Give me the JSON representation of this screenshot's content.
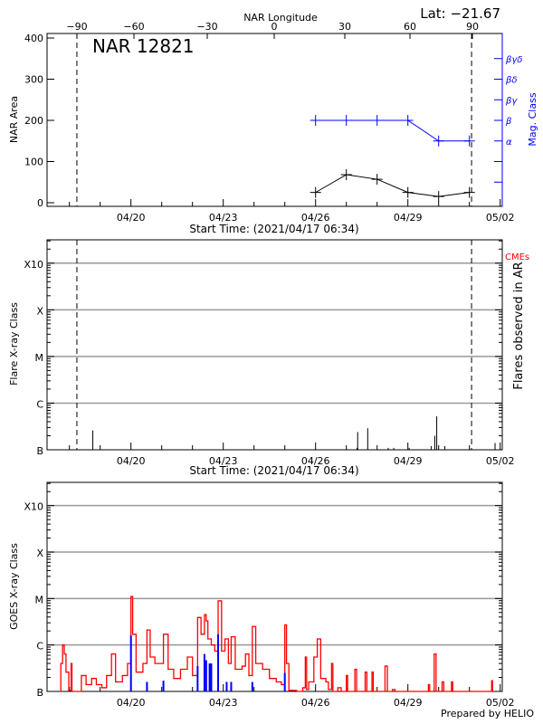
{
  "header": {
    "lat_label": "Lat: −21.67",
    "region_title": "NAR 12821",
    "top_axis_title": "NAR Longitude",
    "footer": "Prepared by HELIO"
  },
  "colors": {
    "area": "#000000",
    "mag_class": "#0000ff",
    "goes": "#ff0000",
    "goes_events": "#0000ff",
    "cmes": "#ff0000",
    "grid": "#999999"
  },
  "chart_data": [
    {
      "type": "line",
      "panel": "nar",
      "xlabel": "Start Time: (2021/04/17 06:34)",
      "ylabel": "NAR Area",
      "y2label": "Mag. Class",
      "x_range": [
        "2021-04-17T06:34",
        "2021-05-02T01:50"
      ],
      "x_tick_labels": [
        "04/20",
        "04/23",
        "04/26",
        "04/29",
        "05/02"
      ],
      "x_ticks": [
        "2021-04-20T00:00",
        "2021-04-23T00:00",
        "2021-04-26T00:00",
        "2021-04-29T00:00",
        "2021-05-02T00:00"
      ],
      "ylim": [
        0,
        400
      ],
      "y_ticks": [
        0,
        100,
        200,
        300,
        400
      ],
      "top_axis_tick_labels": [
        "−90",
        "−60",
        "−30",
        "0",
        "30",
        "60",
        "90"
      ],
      "y2_tick_labels": [
        "",
        "",
        "α",
        "β",
        "βγ",
        "βδ",
        "βγδ"
      ],
      "limb_crossings": [
        "2021-04-18T05:50",
        "2021-05-01T01:40"
      ],
      "series": [
        {
          "key": "area",
          "x": [
            "2021-04-26T00:00",
            "2021-04-27T00:00",
            "2021-04-28T00:00",
            "2021-04-29T00:00",
            "2021-04-30T00:00",
            "2021-05-01T00:00"
          ],
          "values": [
            25,
            68,
            57,
            25,
            15,
            25
          ]
        },
        {
          "key": "mag_class",
          "x": [
            "2021-04-26T00:00",
            "2021-04-27T00:00",
            "2021-04-28T00:00",
            "2021-04-29T00:00",
            "2021-04-30T00:00",
            "2021-05-01T00:00"
          ],
          "values": [
            "β",
            "β",
            "β",
            "β",
            "α",
            "α"
          ]
        }
      ]
    },
    {
      "type": "bar",
      "panel": "flares",
      "xlabel": "Start Time: (2021/04/17 06:34)",
      "ylabel": "Flare X-ray Class",
      "y2label": "Flares observed in AR",
      "legend": "CMEs",
      "y_scale": "log",
      "ylim_flux": [
        1e-07,
        0.00316
      ],
      "y_tick_labels": [
        "B",
        "C",
        "M",
        "X",
        "X10"
      ],
      "x_tick_labels": [
        "04/20",
        "04/23",
        "04/26",
        "04/29",
        "05/02"
      ],
      "limb_crossings": [
        "2021-04-18T05:50",
        "2021-05-01T01:40"
      ],
      "flares": [
        [
          "2021-04-18T18:15",
          2.6e-07
        ],
        [
          "2021-04-27T01:10",
          1e-07
        ],
        [
          "2021-04-27T08:20",
          1.1e-07
        ],
        [
          "2021-04-27T08:50",
          2.4e-07
        ],
        [
          "2021-04-27T16:40",
          2.9e-07
        ],
        [
          "2021-04-28T08:40",
          1.1e-07
        ],
        [
          "2021-04-28T13:00",
          1.1e-07
        ],
        [
          "2021-04-29T01:00",
          1.1e-07
        ],
        [
          "2021-04-29T18:10",
          1.2e-07
        ],
        [
          "2021-04-29T21:00",
          2e-07
        ],
        [
          "2021-04-29T22:30",
          5.2e-07
        ],
        [
          "2021-04-30T04:50",
          1.2e-07
        ],
        [
          "2021-05-01T20:00",
          1.4e-07
        ],
        [
          "2021-05-02T00:00",
          1.05e-07
        ]
      ]
    },
    {
      "type": "line",
      "panel": "goes",
      "ylabel": "GOES X-ray Class",
      "y_scale": "log",
      "ylim_flux": [
        1e-07,
        0.00316
      ],
      "y_tick_labels": [
        "B",
        "C",
        "M",
        "X",
        "X10"
      ],
      "x_tick_labels": [
        "04/20",
        "04/23",
        "04/26",
        "04/29",
        "05/02"
      ],
      "goes_flux": [
        [
          "2021-04-17T16:30",
          1e-07
        ],
        [
          "2021-04-17T17:18",
          4e-07
        ],
        [
          "2021-04-17T18:40",
          1e-06
        ],
        [
          "2021-04-17T20:00",
          6.4e-07
        ],
        [
          "2021-04-17T21:20",
          2.6e-07
        ],
        [
          "2021-04-17T23:30",
          1.05e-07
        ],
        [
          "2021-04-18T01:20",
          4e-07
        ],
        [
          "2021-04-18T02:00",
          1e-07
        ],
        [
          "2021-04-18T08:00",
          1e-07
        ],
        [
          "2021-04-18T09:20",
          2.2e-07
        ],
        [
          "2021-04-18T13:00",
          1.4e-07
        ],
        [
          "2021-04-18T17:20",
          1.9e-07
        ],
        [
          "2021-04-18T21:00",
          1.4e-07
        ],
        [
          "2021-04-19T01:20",
          1.2e-07
        ],
        [
          "2021-04-19T05:00",
          2.2e-07
        ],
        [
          "2021-04-19T08:50",
          6.4e-07
        ],
        [
          "2021-04-19T12:00",
          1.6e-07
        ],
        [
          "2021-04-19T17:20",
          2.2e-07
        ],
        [
          "2021-04-19T21:20",
          4e-07
        ],
        [
          "2021-04-20T00:00",
          1.1e-05
        ],
        [
          "2021-04-20T01:20",
          1.7e-06
        ],
        [
          "2021-04-20T04:00",
          2.6e-07
        ],
        [
          "2021-04-20T09:20",
          4e-07
        ],
        [
          "2021-04-20T12:30",
          2.1e-06
        ],
        [
          "2021-04-20T15:00",
          5.5e-07
        ],
        [
          "2021-04-20T18:40",
          4e-07
        ],
        [
          "2021-04-21T01:20",
          1.7e-06
        ],
        [
          "2021-04-21T05:00",
          3e-07
        ],
        [
          "2021-04-21T09:20",
          1.9e-07
        ],
        [
          "2021-04-21T14:40",
          3e-07
        ],
        [
          "2021-04-21T20:00",
          5.5e-07
        ],
        [
          "2021-04-22T00:00",
          2.2e-07
        ],
        [
          "2021-04-22T04:00",
          3.9e-06
        ],
        [
          "2021-04-22T06:40",
          1.7e-06
        ],
        [
          "2021-04-22T09:20",
          4.5e-06
        ],
        [
          "2021-04-22T10:40",
          3.3e-06
        ],
        [
          "2021-04-22T12:00",
          1.35e-06
        ],
        [
          "2021-04-22T14:40",
          1e-06
        ],
        [
          "2021-04-22T17:20",
          7.4e-07
        ],
        [
          "2021-04-22T20:00",
          8.9e-06
        ],
        [
          "2021-04-22T22:40",
          7.4e-07
        ],
        [
          "2021-04-23T01:20",
          1.35e-06
        ],
        [
          "2021-04-23T04:00",
          4e-07
        ],
        [
          "2021-04-23T06:10",
          1.5e-06
        ],
        [
          "2021-04-23T09:20",
          3e-07
        ],
        [
          "2021-04-23T14:40",
          3.5e-07
        ],
        [
          "2021-04-23T17:20",
          6.4e-07
        ],
        [
          "2021-04-23T20:00",
          2.2e-07
        ],
        [
          "2021-04-23T22:40",
          2.5e-06
        ],
        [
          "2021-04-24T01:20",
          4e-07
        ],
        [
          "2021-04-24T06:40",
          3e-07
        ],
        [
          "2021-04-24T12:00",
          1.9e-07
        ],
        [
          "2021-04-24T17:20",
          1.6e-07
        ],
        [
          "2021-04-24T21:20",
          1.4e-07
        ],
        [
          "2021-04-25T00:00",
          2.7e-06
        ],
        [
          "2021-04-25T01:20",
          4e-07
        ],
        [
          "2021-04-25T03:10",
          1.05e-07
        ],
        [
          "2021-04-25T09:20",
          1e-07
        ],
        [
          "2021-04-25T14:00",
          1.2e-07
        ],
        [
          "2021-04-25T16:00",
          5.5e-07
        ],
        [
          "2021-04-25T17:00",
          1.1e-07
        ],
        [
          "2021-04-25T18:40",
          1.6e-07
        ],
        [
          "2021-04-25T22:40",
          5.5e-07
        ],
        [
          "2021-04-26T01:20",
          1.35e-06
        ],
        [
          "2021-04-26T04:00",
          1.9e-07
        ],
        [
          "2021-04-26T08:00",
          1.6e-07
        ],
        [
          "2021-04-26T10:00",
          1.1e-07
        ],
        [
          "2021-04-26T12:30",
          4e-07
        ],
        [
          "2021-04-26T13:30",
          1e-07
        ],
        [
          "2021-04-26T17:20",
          1.2e-07
        ],
        [
          "2021-04-26T20:00",
          1e-07
        ],
        [
          "2021-04-27T00:00",
          2.2e-07
        ],
        [
          "2021-04-27T01:00",
          1e-07
        ],
        [
          "2021-04-27T06:40",
          3e-07
        ],
        [
          "2021-04-27T08:00",
          1e-07
        ],
        [
          "2021-04-27T14:40",
          2.6e-07
        ],
        [
          "2021-04-27T16:00",
          1e-07
        ],
        [
          "2021-04-27T20:00",
          2.6e-07
        ],
        [
          "2021-04-27T21:00",
          1e-07
        ],
        [
          "2021-04-28T06:10",
          3.5e-07
        ],
        [
          "2021-04-28T08:00",
          1e-07
        ],
        [
          "2021-04-28T12:00",
          1.1e-07
        ],
        [
          "2021-04-28T14:00",
          1e-07
        ],
        [
          "2021-04-29T16:00",
          1.4e-07
        ],
        [
          "2021-04-29T17:00",
          1e-07
        ],
        [
          "2021-04-29T20:30",
          6.4e-07
        ],
        [
          "2021-04-29T22:00",
          1e-07
        ],
        [
          "2021-04-30T02:40",
          1.6e-07
        ],
        [
          "2021-04-30T04:00",
          1e-07
        ],
        [
          "2021-04-30T10:00",
          1.6e-07
        ],
        [
          "2021-04-30T11:00",
          1e-07
        ],
        [
          "2021-05-01T17:20",
          1.7e-07
        ],
        [
          "2021-05-01T18:00",
          1e-07
        ]
      ],
      "goes_events": [
        [
          "2021-04-20T00:00",
          1.6e-06
        ],
        [
          "2021-04-20T12:30",
          1.6e-07
        ],
        [
          "2021-04-21T01:20",
          1.7e-07
        ],
        [
          "2021-04-22T04:00",
          3.5e-07
        ],
        [
          "2021-04-22T09:20",
          6.4e-07
        ],
        [
          "2021-04-22T10:40",
          4.7e-07
        ],
        [
          "2021-04-22T13:20",
          4e-07
        ],
        [
          "2021-04-22T14:40",
          4e-07
        ],
        [
          "2021-04-22T20:00",
          1.7e-06
        ],
        [
          "2021-04-23T02:40",
          1.6e-07
        ],
        [
          "2021-04-23T06:10",
          1.6e-07
        ],
        [
          "2021-04-23T22:40",
          1.6e-07
        ],
        [
          "2021-04-25T00:00",
          2.5e-07
        ]
      ]
    }
  ]
}
